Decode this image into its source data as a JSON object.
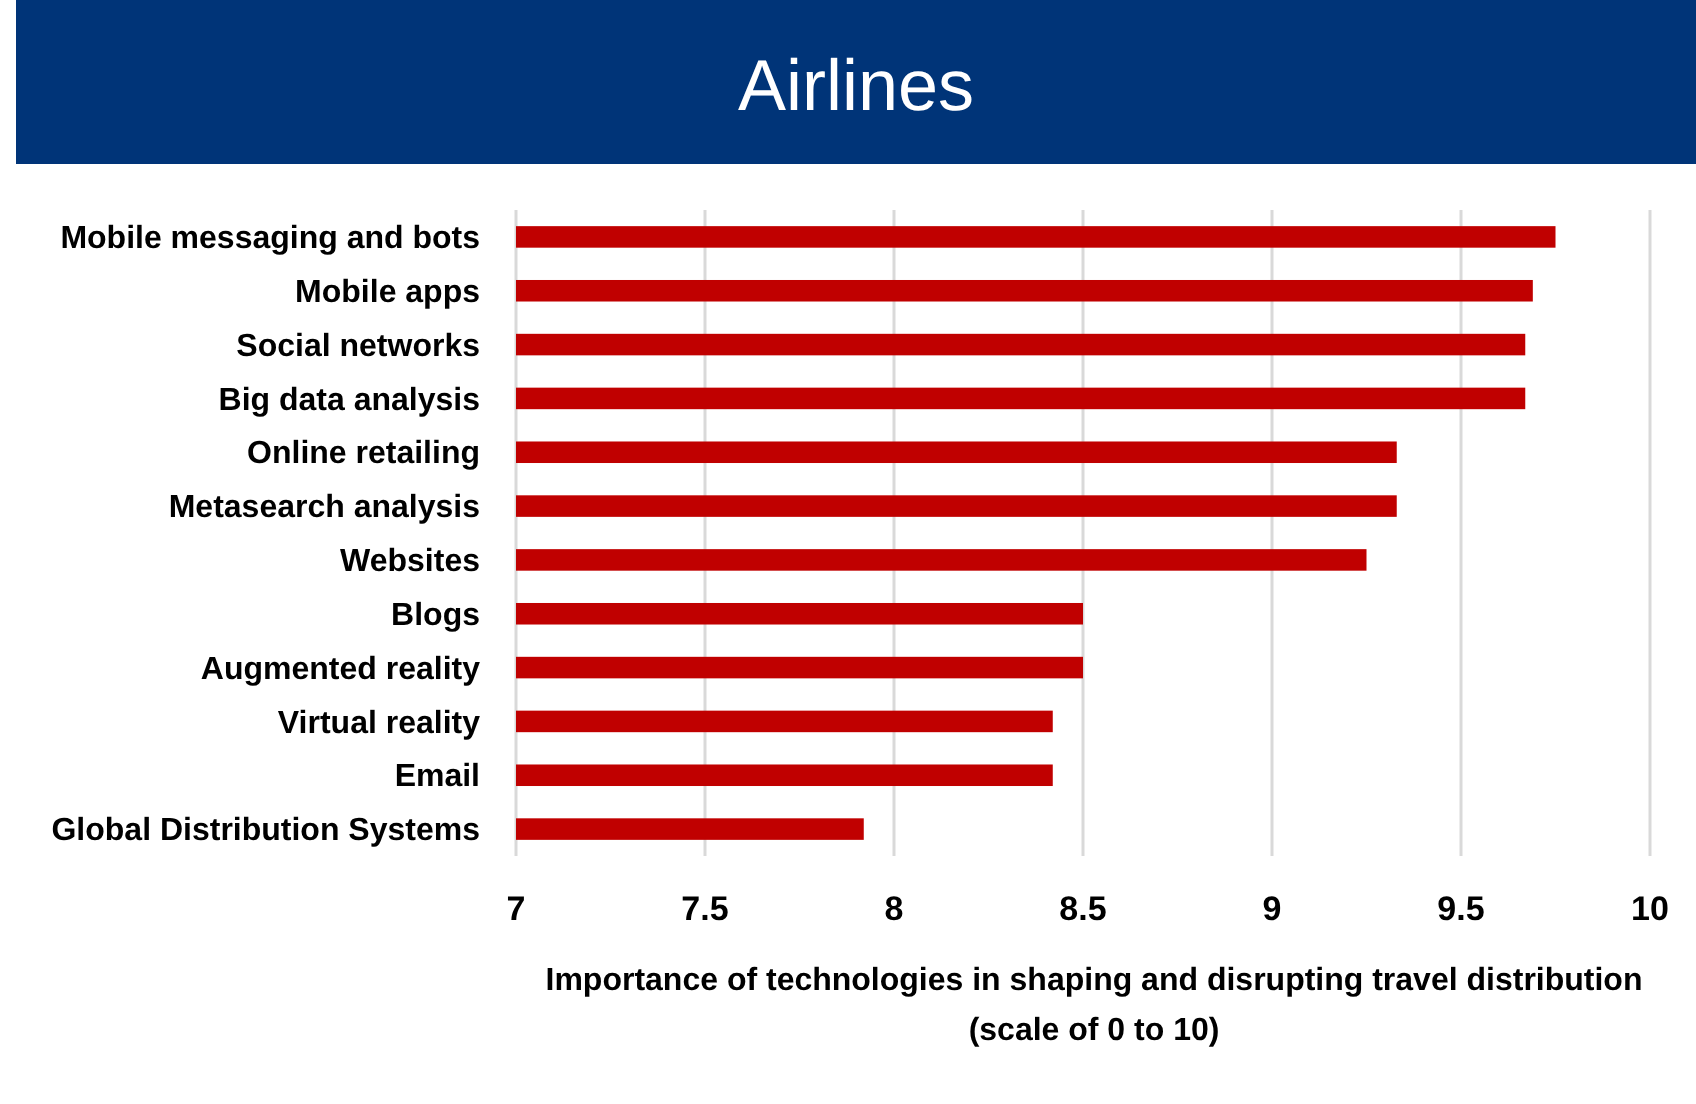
{
  "chart_data": {
    "type": "bar",
    "orientation": "horizontal",
    "title": "Airlines",
    "xlabel": "Importance of technologies in shaping and disrupting travel distribution (scale of 0 to 10)",
    "categories": [
      "Mobile messaging and bots",
      "Mobile apps",
      "Social networks",
      "Big data analysis",
      "Online retailing",
      "Metasearch analysis",
      "Websites",
      "Blogs",
      "Augmented reality",
      "Virtual reality",
      "Email",
      "Global Distribution Systems"
    ],
    "values": [
      9.75,
      9.69,
      9.67,
      9.67,
      9.33,
      9.33,
      9.25,
      8.5,
      8.5,
      8.42,
      8.42,
      7.92
    ],
    "color": "#c00000",
    "xlim": [
      7,
      10
    ],
    "xticks": [
      7,
      7.5,
      8,
      8.5,
      9,
      9.5,
      10
    ],
    "grid": "x"
  }
}
